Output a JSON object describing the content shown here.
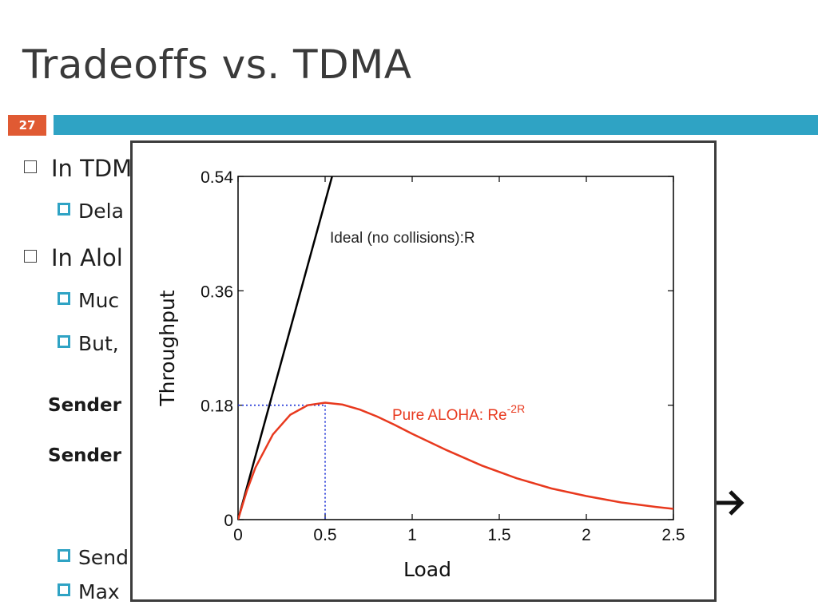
{
  "slide": {
    "title": "Tradeoffs vs. TDMA",
    "number": "27",
    "bullets": [
      {
        "level": 1,
        "text": "In TDM"
      },
      {
        "level": 2,
        "text": "Dela"
      },
      {
        "level": 1,
        "text": "In Alol"
      },
      {
        "level": 2,
        "text": "Muc"
      },
      {
        "level": 2,
        "text": "But,"
      },
      {
        "level": 3,
        "text": "Sender"
      },
      {
        "level": 3,
        "text": "Sender"
      },
      {
        "level": 2,
        "text": "Send"
      },
      {
        "level": 2,
        "text": "Max"
      }
    ],
    "accent_color": "#2fa3c4",
    "number_color": "#e05a33",
    "arrow_icon": "arrow-right-icon"
  },
  "chart_data": {
    "type": "line",
    "xlabel": "Load",
    "ylabel": "Throughput",
    "xlim": [
      0,
      2.5
    ],
    "ylim": [
      0,
      0.54
    ],
    "x_ticks": [
      "0",
      "0.5",
      "1",
      "1.5",
      "2",
      "2.5"
    ],
    "y_ticks": [
      "0",
      "0.18",
      "0.36",
      "0.54"
    ],
    "grid": false,
    "series": [
      {
        "name": "Ideal (no collisions):R",
        "color": "#000000",
        "x": [
          0,
          0.54
        ],
        "y": [
          0,
          0.54
        ]
      },
      {
        "name": "Pure ALOHA: Re",
        "name_superscript": "-2R",
        "color": "#e8391e",
        "x": [
          0,
          0.05,
          0.1,
          0.2,
          0.3,
          0.4,
          0.5,
          0.6,
          0.7,
          0.8,
          0.9,
          1.0,
          1.2,
          1.4,
          1.6,
          1.8,
          2.0,
          2.2,
          2.4,
          2.5
        ],
        "y": [
          0,
          0.045,
          0.082,
          0.134,
          0.165,
          0.18,
          0.184,
          0.181,
          0.173,
          0.162,
          0.149,
          0.135,
          0.109,
          0.085,
          0.065,
          0.049,
          0.037,
          0.027,
          0.02,
          0.017
        ]
      }
    ],
    "marker": {
      "x": 0.5,
      "y": 0.18,
      "style": "dotted",
      "color": "#1a2fd6"
    }
  }
}
